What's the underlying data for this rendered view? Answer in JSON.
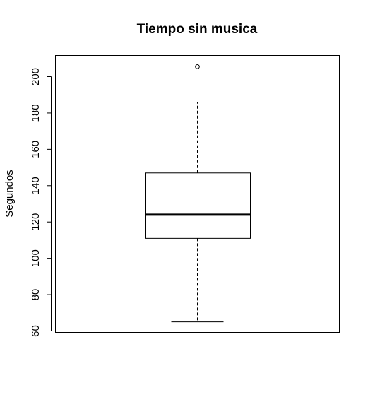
{
  "chart_data": {
    "type": "box",
    "title": "Tiempo sin musica",
    "xlabel": "",
    "ylabel": "Segundos",
    "ylim": [
      60,
      210
    ],
    "yticks": [
      60,
      80,
      100,
      120,
      140,
      160,
      180,
      200
    ],
    "grid": false,
    "box": {
      "whisker_low": 65,
      "q1": 111,
      "median": 124,
      "q3": 147,
      "whisker_high": 186,
      "outliers": [
        205.5
      ]
    }
  }
}
